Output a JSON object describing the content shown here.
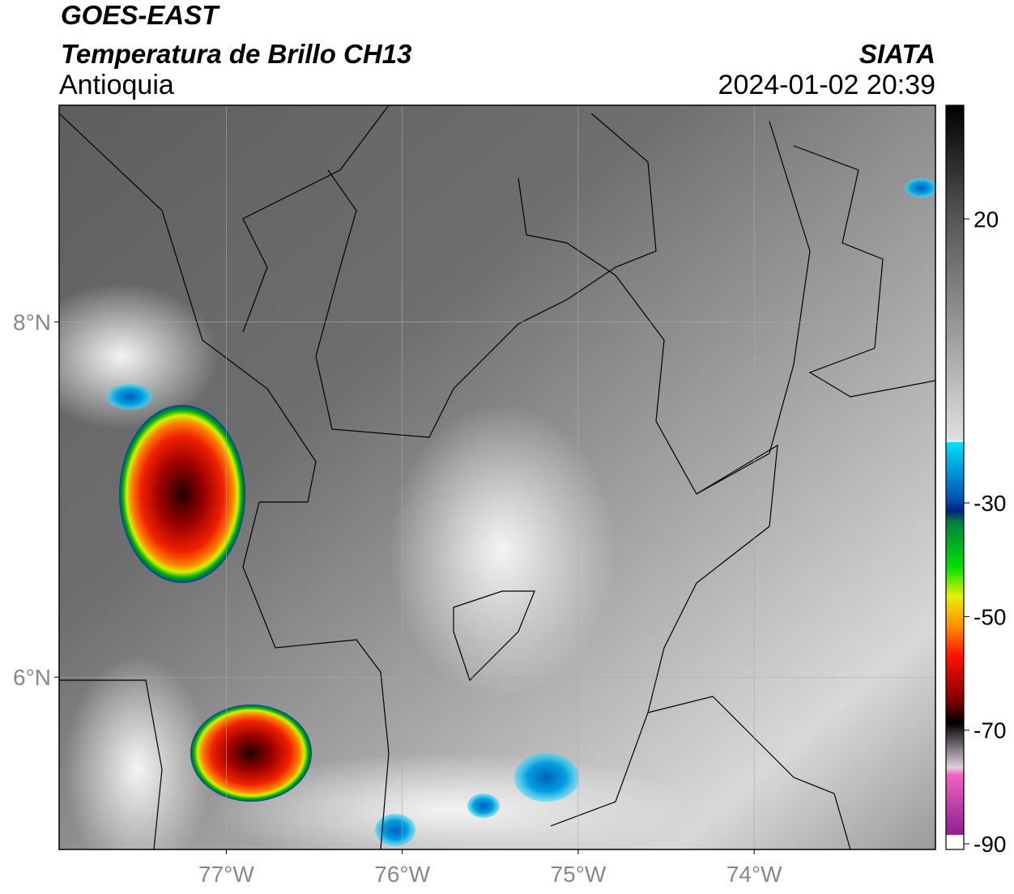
{
  "header": {
    "title": "GOES-EAST",
    "subtitle": "Temperatura de Brillo CH13",
    "region": "Antioquia",
    "source": "SIATA",
    "datetime": "2024-01-02 20:39"
  },
  "map": {
    "xlim": [
      -77.95,
      -72.97
    ],
    "ylim": [
      5.03,
      9.22
    ],
    "xticks": [
      {
        "value": -77,
        "label": "77°W"
      },
      {
        "value": -76,
        "label": "76°W"
      },
      {
        "value": -75,
        "label": "75°W"
      },
      {
        "value": -74,
        "label": "74°W"
      }
    ],
    "yticks": [
      {
        "value": 8,
        "label": "8°N"
      },
      {
        "value": 6,
        "label": "6°N"
      }
    ],
    "grid": true
  },
  "colorbar": {
    "lim": [
      -91,
      40
    ],
    "ticks": [
      20,
      -30,
      -50,
      -70,
      -90
    ]
  }
}
